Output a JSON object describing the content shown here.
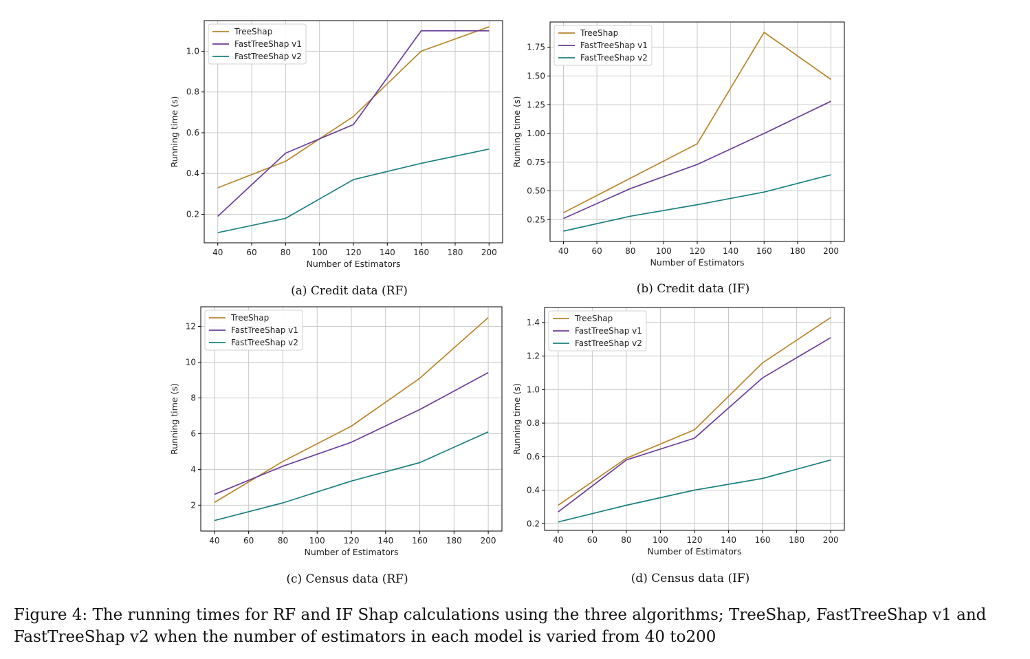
{
  "colors": {
    "TreeShap": "#b8862b",
    "FastTreeShap v1": "#6a3d9a",
    "FastTreeShap v2": "#1a8080",
    "grid": "#c8c8c8"
  },
  "caption": "Figure 4: The running times for RF and IF Shap calculations using the three algorithms; TreeShap, FastTreeShap v1 and FastTreeShap v2 when the number of estimators in each model is varied from 40 to200",
  "chart_data": [
    {
      "type": "line",
      "subcaption": "(a) Credit data (RF)",
      "xlabel": "Number of Estimators",
      "ylabel": "Running time (s)",
      "x": [
        40,
        80,
        120,
        160,
        200
      ],
      "xticks": [
        40,
        60,
        80,
        100,
        120,
        140,
        160,
        180,
        200
      ],
      "xlim": [
        32,
        208
      ],
      "yticks": [
        0.2,
        0.4,
        0.6,
        0.8,
        1.0
      ],
      "ytick_labels": [
        "0.2",
        "0.4",
        "0.6",
        "0.8",
        "1.0"
      ],
      "ylim": [
        0.06,
        1.15
      ],
      "grid": true,
      "legend": "top-left",
      "series": [
        {
          "name": "TreeShap",
          "values": [
            0.33,
            0.46,
            0.68,
            1.0,
            1.12
          ]
        },
        {
          "name": "FastTreeShap v1",
          "values": [
            0.19,
            0.5,
            0.64,
            1.1,
            1.1
          ]
        },
        {
          "name": "FastTreeShap v2",
          "values": [
            0.11,
            0.18,
            0.37,
            0.45,
            0.52
          ]
        }
      ]
    },
    {
      "type": "line",
      "subcaption": "(b) Credit data (IF)",
      "xlabel": "Number of Estimators",
      "ylabel": "Running time (s)",
      "x": [
        40,
        80,
        120,
        160,
        200
      ],
      "xticks": [
        40,
        60,
        80,
        100,
        120,
        140,
        160,
        180,
        200
      ],
      "xlim": [
        32,
        208
      ],
      "yticks": [
        0.25,
        0.5,
        0.75,
        1.0,
        1.25,
        1.5,
        1.75
      ],
      "ytick_labels": [
        "0.25",
        "0.50",
        "0.75",
        "1.00",
        "1.25",
        "1.50",
        "1.75"
      ],
      "ylim": [
        0.06,
        1.97
      ],
      "grid": true,
      "legend": "top-left",
      "series": [
        {
          "name": "TreeShap",
          "values": [
            0.31,
            0.61,
            0.91,
            1.88,
            1.47
          ]
        },
        {
          "name": "FastTreeShap v1",
          "values": [
            0.26,
            0.52,
            0.73,
            1.0,
            1.28
          ]
        },
        {
          "name": "FastTreeShap v2",
          "values": [
            0.15,
            0.28,
            0.38,
            0.49,
            0.64
          ]
        }
      ]
    },
    {
      "type": "line",
      "subcaption": "(c) Census data (RF)",
      "xlabel": "Number of Estimators",
      "ylabel": "Running time (s)",
      "x": [
        40,
        80,
        120,
        160,
        200
      ],
      "xticks": [
        40,
        60,
        80,
        100,
        120,
        140,
        160,
        180,
        200
      ],
      "xlim": [
        32,
        208
      ],
      "yticks": [
        2,
        4,
        6,
        8,
        10,
        12
      ],
      "ytick_labels": [
        "2",
        "4",
        "6",
        "8",
        "10",
        "12"
      ],
      "ylim": [
        0.55,
        13.1
      ],
      "grid": true,
      "legend": "top-left",
      "series": [
        {
          "name": "TreeShap",
          "values": [
            2.15,
            4.45,
            6.42,
            9.1,
            12.5
          ]
        },
        {
          "name": "FastTreeShap v1",
          "values": [
            2.6,
            4.18,
            5.52,
            7.35,
            9.42
          ]
        },
        {
          "name": "FastTreeShap v2",
          "values": [
            1.14,
            2.13,
            3.35,
            4.38,
            6.1
          ]
        }
      ]
    },
    {
      "type": "line",
      "subcaption": "(d) Census data (IF)",
      "xlabel": "Number of Estimators",
      "ylabel": "Running time (s)",
      "x": [
        40,
        80,
        120,
        160,
        200
      ],
      "xticks": [
        40,
        60,
        80,
        100,
        120,
        140,
        160,
        180,
        200
      ],
      "xlim": [
        32,
        208
      ],
      "yticks": [
        0.2,
        0.4,
        0.6,
        0.8,
        1.0,
        1.2,
        1.4
      ],
      "ytick_labels": [
        "0.2",
        "0.4",
        "0.6",
        "0.8",
        "1.0",
        "1.2",
        "1.4"
      ],
      "ylim": [
        0.16,
        1.49
      ],
      "grid": true,
      "legend": "top-left",
      "series": [
        {
          "name": "TreeShap",
          "values": [
            0.31,
            0.59,
            0.76,
            1.16,
            1.43
          ]
        },
        {
          "name": "FastTreeShap v1",
          "values": [
            0.27,
            0.58,
            0.71,
            1.07,
            1.31
          ]
        },
        {
          "name": "FastTreeShap v2",
          "values": [
            0.21,
            0.31,
            0.4,
            0.47,
            0.58
          ]
        }
      ]
    }
  ]
}
